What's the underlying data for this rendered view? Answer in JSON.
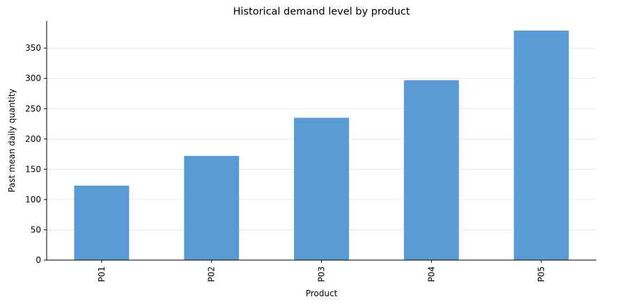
{
  "chart_data": {
    "type": "bar",
    "title": "Historical demand level by product",
    "xlabel": "Product",
    "ylabel": "Past mean daily quantity",
    "categories": [
      "P01",
      "P02",
      "P03",
      "P04",
      "P05"
    ],
    "values": [
      123,
      172,
      235,
      297,
      379
    ],
    "ylim": [
      0,
      395
    ],
    "yticks": [
      0,
      50,
      100,
      150,
      200,
      250,
      300,
      350
    ],
    "grid": "y",
    "bar_color": "#5b9bd5",
    "legend": "none"
  }
}
